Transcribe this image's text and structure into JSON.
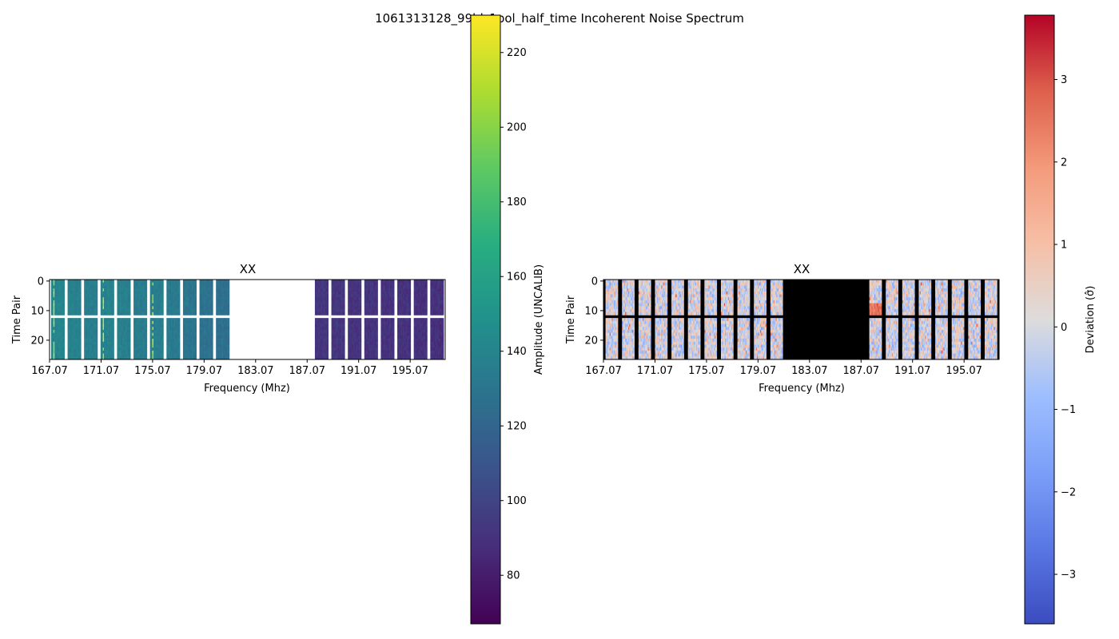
{
  "figure_title": "1061313128_99bl_1pol_half_time Incoherent Noise Spectrum",
  "chart_data": [
    {
      "type": "heatmap",
      "title": "XX",
      "xlabel": "Frequency (Mhz)",
      "ylabel": "Time Pair",
      "x_ticks": [
        "167.07",
        "171.07",
        "175.07",
        "179.07",
        "183.07",
        "187.07",
        "191.07",
        "195.07"
      ],
      "x_tick_values": [
        167.07,
        171.07,
        175.07,
        179.07,
        183.07,
        187.07,
        191.07,
        195.07
      ],
      "xlim": [
        167.07,
        197.79
      ],
      "y_ticks": [
        "0",
        "10",
        "20"
      ],
      "y_tick_values": [
        0,
        10,
        20
      ],
      "ylim": [
        26.5,
        -0.5
      ],
      "grid": false,
      "colormap": "viridis",
      "flagged_color": "#ffffff",
      "colorbar": {
        "label": "Amplitude (UNCALIB)",
        "ticks": [
          "80",
          "100",
          "120",
          "140",
          "160",
          "180",
          "200",
          "220"
        ],
        "tick_values": [
          80,
          100,
          120,
          140,
          160,
          180,
          200,
          220
        ],
        "range": [
          67,
          230
        ]
      },
      "coarse_channels": 24,
      "flagged_time_pair": 12,
      "flagged_frequency_mhz": [
        180.87,
        187.87
      ],
      "approx_amplitude_by_channel": [
        140,
        138,
        136,
        139,
        137,
        135,
        136,
        133,
        130,
        128,
        126,
        null,
        null,
        null,
        null,
        null,
        92,
        92,
        91,
        91,
        90,
        90,
        89,
        89
      ],
      "peak_amplitude": 228
    },
    {
      "type": "heatmap",
      "title": "XX",
      "xlabel": "Frequency (Mhz)",
      "ylabel": "Time Pair",
      "x_ticks": [
        "167.07",
        "171.07",
        "175.07",
        "179.07",
        "183.07",
        "187.07",
        "191.07",
        "195.07"
      ],
      "x_tick_values": [
        167.07,
        171.07,
        175.07,
        179.07,
        183.07,
        187.07,
        191.07,
        195.07
      ],
      "xlim": [
        167.07,
        197.79
      ],
      "y_ticks": [
        "0",
        "10",
        "20"
      ],
      "y_tick_values": [
        0,
        10,
        20
      ],
      "ylim": [
        26.5,
        -0.5
      ],
      "grid": false,
      "colormap": "coolwarm",
      "flagged_color": "#000000",
      "colorbar": {
        "label": "Deviation ($\\hat{\\sigma}$)",
        "label_display": "Deviation (σ̂)",
        "ticks": [
          "−3",
          "−2",
          "−1",
          "0",
          "1",
          "2",
          "3"
        ],
        "tick_values": [
          -3,
          -2,
          -1,
          0,
          1,
          2,
          3
        ],
        "range": [
          -3.6,
          3.78
        ]
      },
      "coarse_channels": 24,
      "flagged_time_pair": 12,
      "flagged_frequency_mhz": [
        180.87,
        187.87
      ]
    }
  ]
}
